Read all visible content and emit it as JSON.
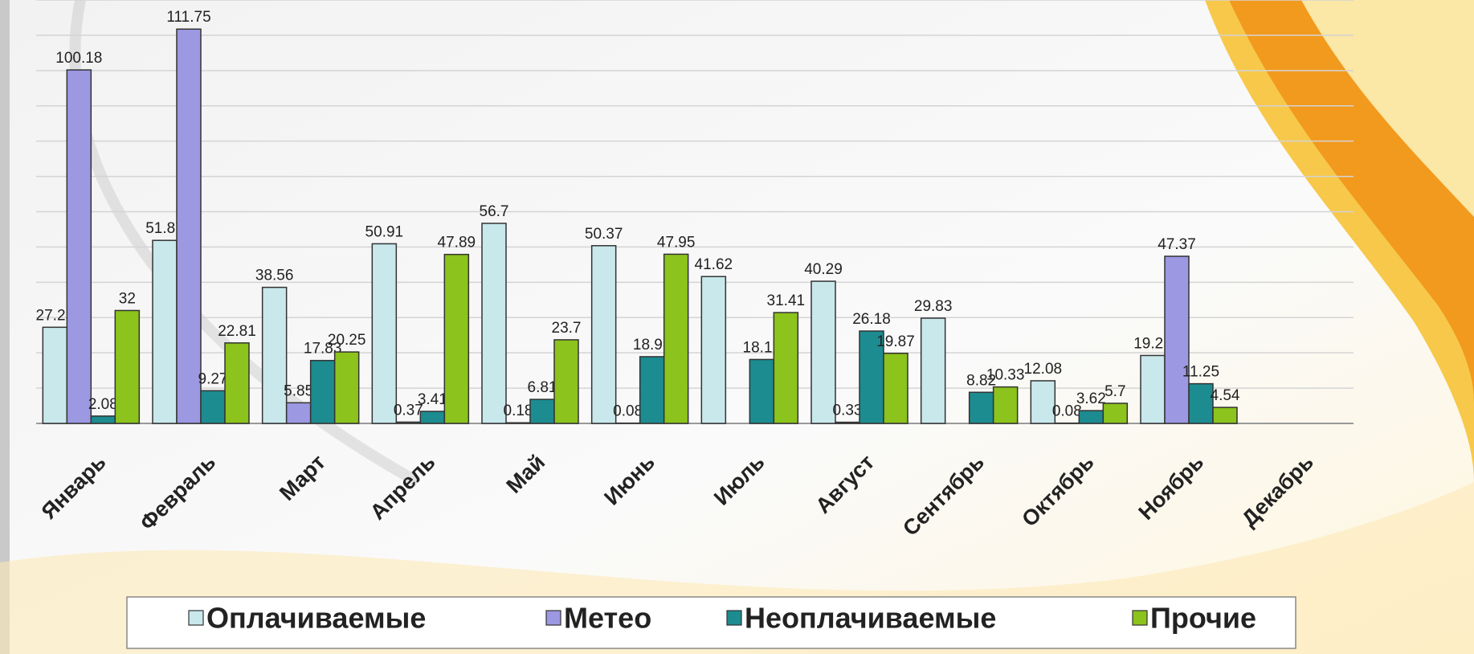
{
  "chart_data": {
    "type": "bar",
    "categories": [
      "Январь",
      "Февраль",
      "Март",
      "Апрель",
      "Май",
      "Июнь",
      "Июль",
      "Август",
      "Сентябрь",
      "Октябрь",
      "Ноябрь",
      "Декабрь"
    ],
    "series": [
      {
        "name": "Оплачиваемые",
        "color": "#c8e8ec",
        "values": [
          27.25,
          51.87,
          38.56,
          50.91,
          56.7,
          50.37,
          41.62,
          40.29,
          29.83,
          12.08,
          19.25,
          null
        ]
      },
      {
        "name": "Метео",
        "color": "#9c98e2",
        "values": [
          100.18,
          111.75,
          5.85,
          0.37,
          0.18,
          0.08,
          null,
          0.33,
          null,
          0.08,
          47.37,
          null
        ]
      },
      {
        "name": "Неоплачиваемые",
        "color": "#1c8c90",
        "values": [
          2.08,
          9.27,
          17.83,
          3.41,
          6.81,
          18.91,
          18.12,
          26.18,
          8.82,
          3.62,
          11.25,
          null
        ]
      },
      {
        "name": "Прочие",
        "color": "#8cc31c",
        "values": [
          32,
          22.81,
          20.25,
          47.89,
          23.7,
          47.95,
          31.41,
          19.87,
          10.33,
          5.7,
          4.54,
          null
        ]
      }
    ],
    "ylim": [
      0,
      120
    ],
    "yticks": [
      0,
      10,
      20,
      30,
      40,
      50,
      60,
      70,
      80,
      90,
      100,
      110,
      120
    ],
    "grid": true,
    "y_tick_labels": false,
    "legend": "bottom"
  }
}
